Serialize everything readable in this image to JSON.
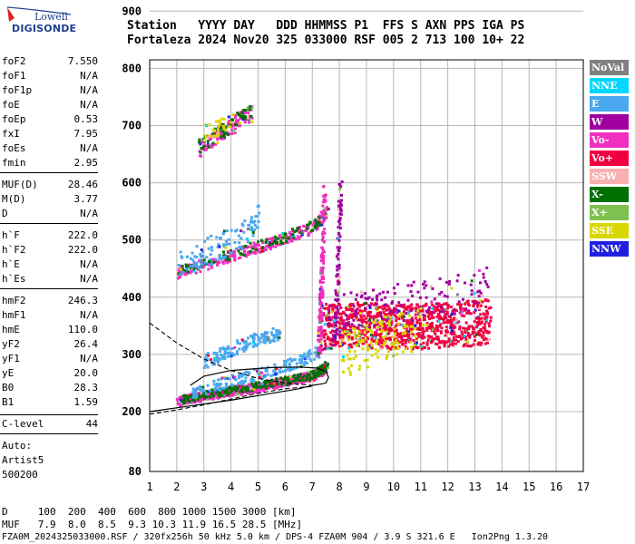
{
  "logo": {
    "line1": "Lowell",
    "line2": "DIGISONDE"
  },
  "header": {
    "line1": "Station   YYYY DAY   DDD HHMMSS P1  FFS S AXN PPS IGA PS",
    "line2": "Fortaleza 2024 Nov20 325 033000 RSF 005 2 713 100 10+ 22"
  },
  "params": {
    "group1": [
      {
        "name": "foF2",
        "value": "7.550"
      },
      {
        "name": "foF1",
        "value": "N/A"
      },
      {
        "name": "foF1p",
        "value": "N/A"
      },
      {
        "name": "foE",
        "value": "N/A"
      },
      {
        "name": "foEp",
        "value": "0.53"
      },
      {
        "name": "fxI",
        "value": "7.95"
      },
      {
        "name": "foEs",
        "value": "N/A"
      },
      {
        "name": "fmin",
        "value": "2.95"
      }
    ],
    "group2": [
      {
        "name": "MUF(D)",
        "value": "28.46"
      },
      {
        "name": "M(D)",
        "value": "3.77"
      },
      {
        "name": "D",
        "value": "N/A"
      }
    ],
    "group3": [
      {
        "name": "h`F",
        "value": "222.0"
      },
      {
        "name": "h`F2",
        "value": "222.0"
      },
      {
        "name": "h`E",
        "value": "N/A"
      },
      {
        "name": "h`Es",
        "value": "N/A"
      }
    ],
    "group4": [
      {
        "name": "hmF2",
        "value": "246.3"
      },
      {
        "name": "hmF1",
        "value": "N/A"
      },
      {
        "name": "hmE",
        "value": "110.0"
      },
      {
        "name": "yF2",
        "value": "26.4"
      },
      {
        "name": "yF1",
        "value": "N/A"
      },
      {
        "name": "yE",
        "value": "20.0"
      },
      {
        "name": "B0",
        "value": "28.3"
      },
      {
        "name": "B1",
        "value": "1.59"
      }
    ],
    "clevel": {
      "name": "C-level",
      "value": "44"
    }
  },
  "autoscale": {
    "line1": "Auto:",
    "line2": "Artist5",
    "line3": "500200"
  },
  "legend": [
    {
      "label": "NoVal",
      "color": "#808080"
    },
    {
      "label": "NNE",
      "color": "#00d8ff"
    },
    {
      "label": "E",
      "color": "#48a8f0"
    },
    {
      "label": "W",
      "color": "#a000a0"
    },
    {
      "label": "Vo-",
      "color": "#f030c0"
    },
    {
      "label": "Vo+",
      "color": "#f00040"
    },
    {
      "label": "SSW",
      "color": "#f8b0b0"
    },
    {
      "label": "X-",
      "color": "#007000"
    },
    {
      "label": "X+",
      "color": "#80c050"
    },
    {
      "label": "SSE",
      "color": "#d8d800"
    },
    {
      "label": "NNW",
      "color": "#2020e0"
    }
  ],
  "footer": {
    "line1": "D     100  200  400  600  800 1000 1500 3000 [km]",
    "line2": "MUF   7.9  8.0  8.5  9.3 10.3 11.9 16.5 28.5 [MHz]",
    "line3": "FZA0M_2024325033000.RSF / 320fx256h 50 kHz 5.0 km / DPS-4 FZA0M 904 / 3.9 S 321.6 E   Ion2Png 1.3.20"
  },
  "chart_data": {
    "type": "scatter",
    "xlabel": "",
    "ylabel": "",
    "xlim": [
      1,
      17
    ],
    "ylim": [
      80,
      900
    ],
    "xticks": [
      "1",
      "2",
      "3",
      "4",
      "5",
      "6",
      "7",
      "8",
      "9",
      "10",
      "11",
      "12",
      "13",
      "14",
      "15",
      "16",
      "17"
    ],
    "yticks": [
      "80",
      "200",
      "300",
      "400",
      "500",
      "600",
      "700",
      "800",
      "900"
    ],
    "grid": true,
    "traces": [
      {
        "name": "O1",
        "x": [
          2.0,
          3.0,
          4.0,
          5.0,
          6.0,
          7.0,
          7.5
        ],
        "y": [
          220,
          230,
          238,
          245,
          255,
          265,
          280
        ],
        "color": "#f030c0",
        "count": 700,
        "spreadY": 8
      },
      {
        "name": "O1b",
        "x": [
          2.0,
          3.0,
          4.0,
          5.0,
          6.0,
          7.0,
          7.5
        ],
        "y": [
          222,
          232,
          240,
          248,
          256,
          266,
          282
        ],
        "color": "#007000",
        "count": 250,
        "spreadY": 7
      },
      {
        "name": "X1",
        "x": [
          2.5,
          3.5,
          4.5,
          5.5,
          6.5,
          7.3
        ],
        "y": [
          235,
          250,
          262,
          275,
          290,
          310
        ],
        "color": "#48a8f0",
        "count": 180,
        "spreadY": 10
      },
      {
        "name": "spread",
        "x": [
          7.3,
          8.5,
          9.5,
          10.5,
          11.5,
          12.5,
          13.5
        ],
        "y": [
          350,
          355,
          352,
          350,
          352,
          355,
          360
        ],
        "color": "#f00040",
        "count": 900,
        "spreadY": 40
      },
      {
        "name": "spreadb",
        "x": [
          7.5,
          8.5,
          9.5,
          10.5,
          11.5,
          12.5,
          13.5
        ],
        "y": [
          360,
          380,
          385,
          395,
          400,
          410,
          420
        ],
        "color": "#a000a0",
        "count": 160,
        "spreadY": 35
      },
      {
        "name": "spreadc",
        "x": [
          8.0,
          9.0,
          10.0,
          11.0
        ],
        "y": [
          300,
          320,
          340,
          350
        ],
        "color": "#d8d800",
        "count": 140,
        "spreadY": 40
      },
      {
        "name": "E2",
        "x": [
          3.0,
          4.0,
          5.0,
          5.8
        ],
        "y": [
          290,
          310,
          330,
          340
        ],
        "color": "#48a8f0",
        "count": 150,
        "spreadY": 12
      },
      {
        "name": "O2",
        "x": [
          2.0,
          3.0,
          4.0,
          5.0,
          6.0,
          7.0,
          7.5
        ],
        "y": [
          445,
          460,
          475,
          490,
          505,
          525,
          550
        ],
        "color": "#f030c0",
        "count": 260,
        "spreadY": 10
      },
      {
        "name": "O2b",
        "x": [
          2.0,
          3.0,
          4.0,
          5.0,
          6.0,
          7.0,
          7.5
        ],
        "y": [
          448,
          462,
          478,
          492,
          508,
          528,
          552
        ],
        "color": "#007000",
        "count": 110,
        "spreadY": 9
      },
      {
        "name": "E3",
        "x": [
          2.0,
          3.0,
          4.0,
          5.0
        ],
        "y": [
          460,
          480,
          500,
          540
        ],
        "color": "#48a8f0",
        "count": 110,
        "spreadY": 25
      },
      {
        "name": "O3",
        "x": [
          2.8,
          3.2,
          3.6,
          4.0,
          4.4,
          4.8
        ],
        "y": [
          660,
          675,
          690,
          700,
          715,
          725
        ],
        "color": "#f030c0",
        "count": 120,
        "spreadY": 14
      },
      {
        "name": "O3b",
        "x": [
          2.8,
          3.2,
          3.6,
          4.0,
          4.4,
          4.8
        ],
        "y": [
          665,
          680,
          692,
          705,
          718,
          728
        ],
        "color": "#007000",
        "count": 60,
        "spreadY": 12
      },
      {
        "name": "O3c",
        "x": [
          3.0,
          3.5,
          4.0
        ],
        "y": [
          690,
          700,
          710
        ],
        "color": "#d8d800",
        "count": 30,
        "spreadY": 15
      },
      {
        "name": "vert",
        "x": [
          7.2,
          7.3,
          7.4
        ],
        "y": [
          300,
          420,
          600
        ],
        "color": "#f030c0",
        "count": 160,
        "spreadY": 6
      },
      {
        "name": "vertb",
        "x": [
          7.8,
          7.9,
          8.0
        ],
        "y": [
          330,
          450,
          600
        ],
        "color": "#a000a0",
        "count": 90,
        "spreadY": 6
      }
    ],
    "profile": {
      "solid": {
        "x": [
          1.0,
          2.5,
          4.0,
          5.5,
          6.5,
          7.0,
          7.3,
          7.5,
          7.6,
          7.5,
          7.2,
          6.5,
          5.5,
          4.0,
          3.0,
          2.5
        ],
        "y": [
          200,
          210,
          220,
          232,
          240,
          246,
          248,
          250,
          260,
          270,
          276,
          278,
          277,
          272,
          262,
          246
        ]
      },
      "dashed": {
        "x": [
          1.0,
          2.0,
          3.0,
          4.0,
          5.0,
          6.0,
          7.0
        ],
        "y": [
          355,
          320,
          292,
          272,
          258,
          250,
          246
        ]
      },
      "dashed2": {
        "x": [
          1.0,
          2.0,
          3.0,
          4.0,
          5.0,
          6.0,
          7.0
        ],
        "y": [
          195,
          203,
          212,
          222,
          232,
          240,
          244
        ]
      }
    }
  }
}
